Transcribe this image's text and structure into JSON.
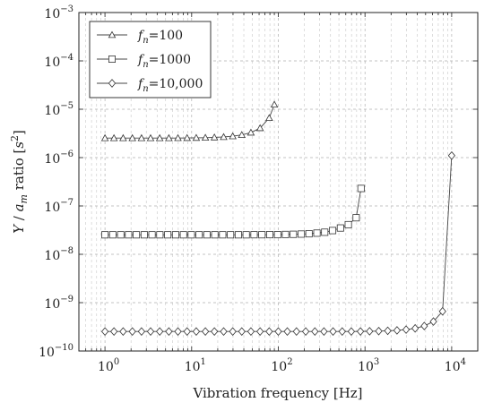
{
  "chart_data": {
    "type": "line",
    "xlabel": "Vibration frequency [Hz]",
    "ylabel": "Y / a_m ratio [s²]",
    "x_scale": "log",
    "y_scale": "log",
    "xlim": [
      0.5,
      20000
    ],
    "ylim": [
      1e-10,
      0.001
    ],
    "grid": true,
    "legend_position": "top-left",
    "x_ticks": [
      {
        "value": 1,
        "base": "10",
        "exp": "0"
      },
      {
        "value": 10,
        "base": "10",
        "exp": "1"
      },
      {
        "value": 100,
        "base": "10",
        "exp": "2"
      },
      {
        "value": 1000,
        "base": "10",
        "exp": "3"
      },
      {
        "value": 10000,
        "base": "10",
        "exp": "4"
      }
    ],
    "y_ticks": [
      {
        "value": 1e-10,
        "base": "10",
        "exp": "−10"
      },
      {
        "value": 1e-09,
        "base": "10",
        "exp": "−9"
      },
      {
        "value": 1e-08,
        "base": "10",
        "exp": "−8"
      },
      {
        "value": 1e-07,
        "base": "10",
        "exp": "−7"
      },
      {
        "value": 1e-06,
        "base": "10",
        "exp": "−6"
      },
      {
        "value": 1e-05,
        "base": "10",
        "exp": "−5"
      },
      {
        "value": 0.0001,
        "base": "10",
        "exp": "−4"
      },
      {
        "value": 0.001,
        "base": "10",
        "exp": "−3"
      }
    ],
    "series": [
      {
        "name": "fn=100",
        "legend_var": "f",
        "legend_sub": "n",
        "legend_value": "=100",
        "marker": "triangle",
        "fn": 100,
        "x": [
          1,
          1.27,
          1.62,
          2.07,
          2.64,
          3.36,
          4.28,
          5.46,
          6.95,
          8.86,
          11.3,
          14.4,
          18.3,
          23.4,
          29.8,
          37.9,
          48.3,
          61.6,
          78.5,
          90
        ],
        "y": [
          2.53e-06,
          2.53e-06,
          2.53e-06,
          2.53e-06,
          2.53e-06,
          2.53e-06,
          2.53e-06,
          2.53e-06,
          2.54e-06,
          2.55e-06,
          2.56e-06,
          2.58e-06,
          2.62e-06,
          2.67e-06,
          2.77e-06,
          2.94e-06,
          3.29e-06,
          4.07e-06,
          6.6e-06,
          1.25e-05
        ]
      },
      {
        "name": "fn=1000",
        "legend_var": "f",
        "legend_sub": "n",
        "legend_value": "=1000",
        "marker": "square",
        "fn": 1000,
        "x": [
          1,
          1.23,
          1.52,
          1.87,
          2.3,
          2.84,
          3.49,
          4.3,
          5.3,
          6.53,
          8.05,
          9.91,
          12.2,
          15.0,
          18.5,
          22.8,
          28.1,
          34.6,
          42.6,
          52.5,
          64.7,
          79.7,
          98.2,
          121,
          149,
          184,
          226,
          279,
          343,
          423,
          521,
          642,
          791,
          900
        ],
        "y": [
          2.53e-08,
          2.53e-08,
          2.53e-08,
          2.53e-08,
          2.53e-08,
          2.53e-08,
          2.53e-08,
          2.53e-08,
          2.53e-08,
          2.53e-08,
          2.53e-08,
          2.53e-08,
          2.53e-08,
          2.53e-08,
          2.53e-08,
          2.53e-08,
          2.53e-08,
          2.53e-08,
          2.53e-08,
          2.54e-08,
          2.54e-08,
          2.55e-08,
          2.55e-08,
          2.57e-08,
          2.59e-08,
          2.62e-08,
          2.66e-08,
          2.74e-08,
          2.86e-08,
          3.1e-08,
          3.5e-08,
          4.1e-08,
          5.7e-08,
          2.3e-07
        ]
      },
      {
        "name": "fn=10,000",
        "legend_var": "f",
        "legend_sub": "n",
        "legend_value": "=10,000",
        "marker": "diamond",
        "fn": 10000,
        "x": [
          1,
          1.27,
          1.62,
          2.07,
          2.64,
          3.36,
          4.28,
          5.46,
          6.95,
          8.86,
          11.3,
          14.4,
          18.3,
          23.4,
          29.8,
          37.9,
          48.3,
          61.6,
          78.5,
          100,
          127,
          162,
          207,
          264,
          336,
          428,
          546,
          695,
          886,
          1130,
          1440,
          1830,
          2340,
          2980,
          3790,
          4830,
          6160,
          7850,
          10000
        ],
        "y": [
          2.53e-10,
          2.53e-10,
          2.53e-10,
          2.53e-10,
          2.53e-10,
          2.53e-10,
          2.53e-10,
          2.53e-10,
          2.53e-10,
          2.53e-10,
          2.53e-10,
          2.53e-10,
          2.53e-10,
          2.53e-10,
          2.53e-10,
          2.53e-10,
          2.53e-10,
          2.53e-10,
          2.53e-10,
          2.53e-10,
          2.53e-10,
          2.53e-10,
          2.53e-10,
          2.53e-10,
          2.53e-10,
          2.53e-10,
          2.53e-10,
          2.53e-10,
          2.54e-10,
          2.56e-10,
          2.58e-10,
          2.62e-10,
          2.67e-10,
          2.77e-10,
          2.94e-10,
          3.29e-10,
          4.07e-10,
          6.6e-10,
          1.1e-06
        ]
      }
    ]
  }
}
